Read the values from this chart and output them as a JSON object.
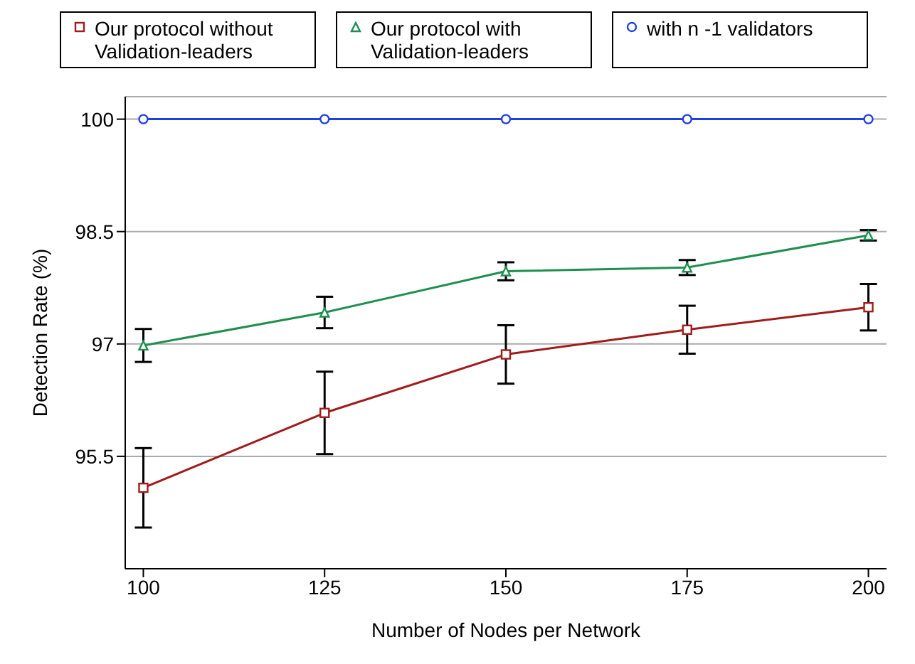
{
  "chart_data": {
    "type": "line",
    "xlabel": "Number of Nodes per Network",
    "ylabel": "Detection Rate (%)",
    "x": [
      100,
      125,
      150,
      175,
      200
    ],
    "series": [
      {
        "name": "Our protocol without Validation-leaders",
        "color": "#a01c1c",
        "marker": "square",
        "values": [
          95.08,
          96.08,
          96.86,
          97.19,
          97.49
        ],
        "errors": [
          0.53,
          0.55,
          0.39,
          0.32,
          0.31
        ]
      },
      {
        "name": "Our protocol with Validation-leaders",
        "color": "#1f8f4f",
        "marker": "triangle",
        "values": [
          96.98,
          97.42,
          97.97,
          98.02,
          98.45
        ],
        "errors": [
          0.22,
          0.21,
          0.12,
          0.1,
          0.07
        ]
      },
      {
        "name": "with n -1 validators",
        "color": "#2040e0",
        "marker": "circle",
        "values": [
          100,
          100,
          100,
          100,
          100
        ]
      }
    ],
    "xlim": [
      97.5,
      202.5
    ],
    "xticks": [
      100,
      125,
      150,
      175,
      200
    ],
    "ylim": [
      94,
      100.3
    ],
    "yticks": [
      95.5,
      97,
      98.5,
      100
    ],
    "grid": "y",
    "legend": "top",
    "line_style": "solid"
  }
}
